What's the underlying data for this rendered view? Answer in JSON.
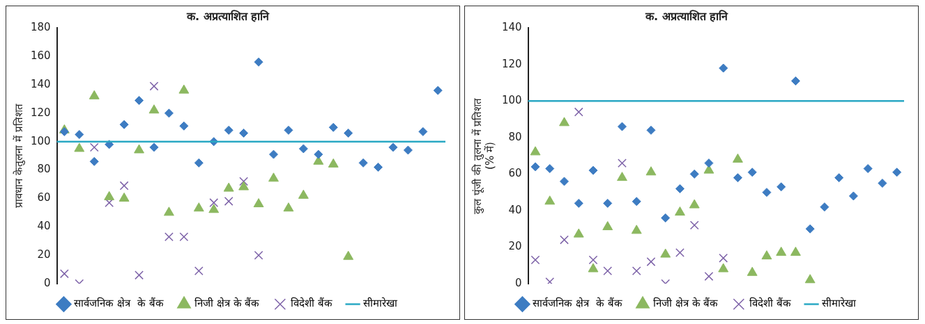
{
  "chart_data": [
    {
      "type": "scatter",
      "title": "क. अप्रत्याशित हानि",
      "ylabel": "प्रावधान केतुलना में प्रतिशत",
      "categories": [
        null,
        null,
        null,
        null,
        null,
        null,
        null,
        null,
        null,
        null,
        null,
        null,
        null,
        null,
        null,
        null,
        null,
        null,
        null,
        null,
        null,
        null,
        null,
        null,
        null,
        null
      ],
      "ylim": [
        0,
        180
      ],
      "yticks": [
        0,
        20,
        40,
        60,
        80,
        100,
        120,
        140,
        160,
        180
      ],
      "grid": false,
      "legend": "bottom",
      "tick_labels": "y",
      "series": [
        {
          "name": "सार्वजनिक क्षेत्र  के बैंक",
          "color": "#3d7cc2",
          "marker": "diamond",
          "values": [
            107,
            105,
            86,
            98,
            112,
            129,
            96,
            120,
            111,
            85,
            100,
            108,
            106,
            156,
            91,
            108,
            95,
            91,
            110,
            106,
            85,
            82,
            96,
            94,
            107,
            136
          ]
        },
        {
          "name": "निजी क्षेत्र के बैंक",
          "color": "#8cb860",
          "marker": "triangle",
          "values": [
            108,
            95,
            132,
            61,
            60,
            94,
            122,
            50,
            136,
            53,
            52,
            67,
            68,
            56,
            74,
            53,
            62,
            86,
            84,
            19,
            null,
            null,
            null,
            null,
            null,
            null
          ]
        },
        {
          "name": "विदेशी बैंक",
          "color": "#7d62a8",
          "marker": "cross",
          "values": [
            7,
            0,
            96,
            57,
            69,
            6,
            139,
            33,
            33,
            9,
            57,
            58,
            72,
            20,
            null,
            null,
            null,
            null,
            null,
            null,
            null,
            null,
            null,
            null,
            null,
            null
          ]
        }
      ],
      "ref_lines": [
        {
          "axis": "y",
          "value": 100,
          "label": "सीमारेखा",
          "color": "#2aa8c4"
        }
      ]
    },
    {
      "type": "scatter",
      "title": "क. अप्रत्याशित हानि",
      "ylabel": "कुल पूंजी की तुलना में प्रतिशत\n(% में)",
      "categories": [
        null,
        null,
        null,
        null,
        null,
        null,
        null,
        null,
        null,
        null,
        null,
        null,
        null,
        null,
        null,
        null,
        null,
        null,
        null,
        null,
        null,
        null,
        null,
        null,
        null,
        null
      ],
      "ylim": [
        0,
        140
      ],
      "yticks": [
        0,
        20,
        40,
        60,
        80,
        100,
        120,
        140
      ],
      "grid": false,
      "legend": "bottom",
      "tick_labels": "y",
      "series": [
        {
          "name": "सार्वजनिक क्षेत्र  के बैंक",
          "color": "#3d7cc2",
          "marker": "diamond",
          "values": [
            64,
            63,
            56,
            44,
            62,
            44,
            86,
            45,
            84,
            36,
            52,
            60,
            66,
            118,
            58,
            61,
            50,
            53,
            111,
            30,
            42,
            58,
            48,
            63,
            55,
            61
          ]
        },
        {
          "name": "निजी क्षेत्र के बैंक",
          "color": "#8cb860",
          "marker": "triangle",
          "values": [
            72,
            45,
            88,
            27,
            8,
            31,
            58,
            29,
            61,
            16,
            39,
            43,
            62,
            8,
            68,
            6,
            15,
            17,
            17,
            2,
            null,
            null,
            null,
            null,
            null,
            null
          ]
        },
        {
          "name": "विदेशी बैंक",
          "color": "#7d62a8",
          "marker": "cross",
          "values": [
            13,
            1,
            24,
            94,
            13,
            7,
            66,
            7,
            12,
            0,
            17,
            32,
            4,
            14,
            null,
            null,
            null,
            null,
            null,
            null,
            null,
            null,
            null,
            null,
            null,
            null
          ]
        }
      ],
      "ref_lines": [
        {
          "axis": "y",
          "value": 100,
          "label": "सीमारेखा",
          "color": "#2aa8c4"
        }
      ]
    }
  ]
}
